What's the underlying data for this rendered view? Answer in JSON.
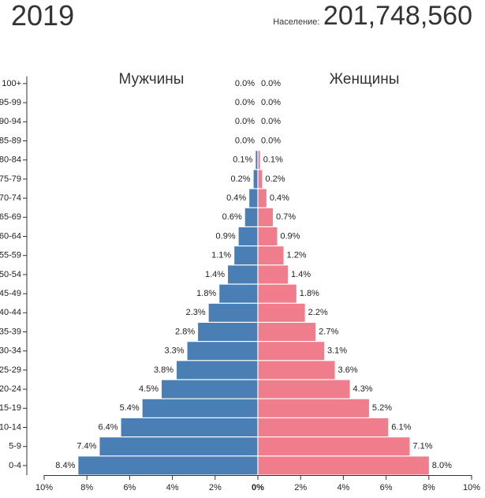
{
  "header": {
    "year": "2019",
    "population_label": "Население:",
    "population_value": "201,748,560"
  },
  "chart_data": {
    "type": "bar",
    "orientation": "horizontal-population-pyramid",
    "left_label": "Мужчины",
    "right_label": "Женщины",
    "categories": [
      "0-4",
      "5-9",
      "10-14",
      "15-19",
      "20-24",
      "25-29",
      "30-34",
      "35-39",
      "40-44",
      "45-49",
      "50-54",
      "55-59",
      "60-64",
      "65-69",
      "70-74",
      "75-79",
      "80-84",
      "85-89",
      "90-94",
      "95-99",
      "100+"
    ],
    "series": [
      {
        "name": "Мужчины",
        "color": "#4a7fb5",
        "values": [
          8.4,
          7.4,
          6.4,
          5.4,
          4.5,
          3.8,
          3.3,
          2.8,
          2.3,
          1.8,
          1.4,
          1.1,
          0.9,
          0.6,
          0.4,
          0.2,
          0.1,
          0.0,
          0.0,
          0.0,
          0.0
        ],
        "labels": [
          "8.4%",
          "7.4%",
          "6.4%",
          "5.4%",
          "4.5%",
          "3.8%",
          "3.3%",
          "2.8%",
          "2.3%",
          "1.8%",
          "1.4%",
          "1.1%",
          "0.9%",
          "0.6%",
          "0.4%",
          "0.2%",
          "0.1%",
          "0.0%",
          "0.0%",
          "0.0%",
          "0.0%"
        ]
      },
      {
        "name": "Женщины",
        "color": "#ef7d8c",
        "values": [
          8.0,
          7.1,
          6.1,
          5.2,
          4.3,
          3.6,
          3.1,
          2.7,
          2.2,
          1.8,
          1.4,
          1.2,
          0.9,
          0.7,
          0.4,
          0.2,
          0.1,
          0.0,
          0.0,
          0.0,
          0.0
        ],
        "labels": [
          "8.0%",
          "7.1%",
          "6.1%",
          "5.2%",
          "4.3%",
          "3.6%",
          "3.1%",
          "2.7%",
          "2.2%",
          "1.8%",
          "1.4%",
          "1.2%",
          "0.9%",
          "0.7%",
          "0.4%",
          "0.2%",
          "0.1%",
          "0.0%",
          "0.0%",
          "0.0%",
          "0.0%"
        ]
      }
    ],
    "xlim": [
      -10,
      10
    ],
    "x_ticks": [
      "10%",
      "8%",
      "6%",
      "4%",
      "2%",
      "0%",
      "2%",
      "4%",
      "6%",
      "8%",
      "10%"
    ],
    "grid": false
  }
}
